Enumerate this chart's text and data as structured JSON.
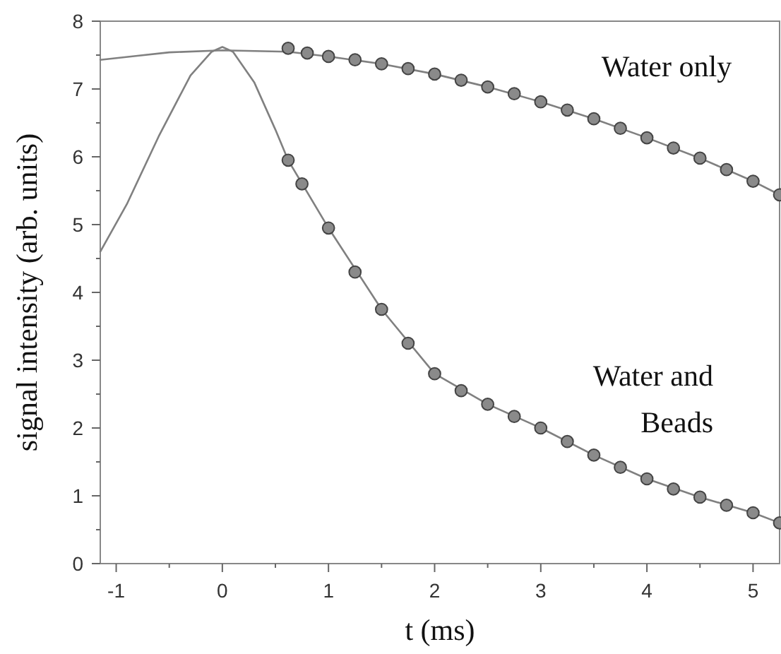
{
  "chart_data": {
    "type": "scatter",
    "xlabel": "t (ms)",
    "ylabel": "signal intensity (arb. units)",
    "xlim": [
      -1.15,
      5.25
    ],
    "xticks": [
      -1,
      0,
      1,
      2,
      3,
      4,
      5
    ],
    "ylim": [
      0,
      8
    ],
    "yticks": [
      0,
      1,
      2,
      3,
      4,
      5,
      6,
      7,
      8
    ],
    "grid": false,
    "marker": "circle",
    "series": [
      {
        "type": "line",
        "color": "#808080",
        "marker": "none",
        "x": [
          -1.15,
          -0.8,
          -0.5,
          0,
          0.62,
          1,
          1.5,
          2,
          2.5,
          3,
          3.5,
          4,
          4.5,
          5,
          5.25
        ],
        "values": [
          7.43,
          7.49,
          7.54,
          7.57,
          7.55,
          7.48,
          7.37,
          7.22,
          7.03,
          6.81,
          6.56,
          6.28,
          5.98,
          5.64,
          5.44
        ]
      },
      {
        "type": "line",
        "color": "#808080",
        "marker": "none",
        "x": [
          -1.15,
          -0.9,
          -0.6,
          -0.3,
          -0.1,
          0,
          0.1,
          0.3,
          0.5,
          0.62,
          1,
          1.5,
          2,
          2.5,
          3,
          3.5,
          4,
          4.5,
          5,
          5.25
        ],
        "values": [
          4.6,
          5.3,
          6.3,
          7.2,
          7.55,
          7.62,
          7.55,
          7.1,
          6.4,
          5.95,
          4.95,
          3.75,
          2.8,
          2.35,
          2.0,
          1.6,
          1.25,
          0.98,
          0.75,
          0.6
        ]
      },
      {
        "color": "#8a8a8a",
        "x": [
          0.62,
          0.8,
          1,
          1.25,
          1.5,
          1.75,
          2,
          2.25,
          2.5,
          2.75,
          3,
          3.25,
          3.5,
          3.75,
          4,
          4.25,
          4.5,
          4.75,
          5,
          5.25
        ],
        "values": [
          7.6,
          7.53,
          7.48,
          7.43,
          7.37,
          7.3,
          7.22,
          7.13,
          7.03,
          6.93,
          6.81,
          6.69,
          6.56,
          6.42,
          6.28,
          6.13,
          5.98,
          5.81,
          5.64,
          5.44
        ]
      },
      {
        "color": "#8a8a8a",
        "x": [
          0.62,
          0.75,
          1,
          1.25,
          1.5,
          1.75,
          2,
          2.25,
          2.5,
          2.75,
          3,
          3.25,
          3.5,
          3.75,
          4,
          4.25,
          4.5,
          4.75,
          5,
          5.25
        ],
        "values": [
          5.95,
          5.6,
          4.95,
          4.3,
          3.75,
          3.25,
          2.8,
          2.55,
          2.35,
          2.17,
          2.0,
          1.8,
          1.6,
          1.42,
          1.25,
          1.1,
          0.98,
          0.86,
          0.75,
          0.6
        ]
      }
    ],
    "annotations": [
      "Water only",
      "Water and\nBeads"
    ]
  }
}
